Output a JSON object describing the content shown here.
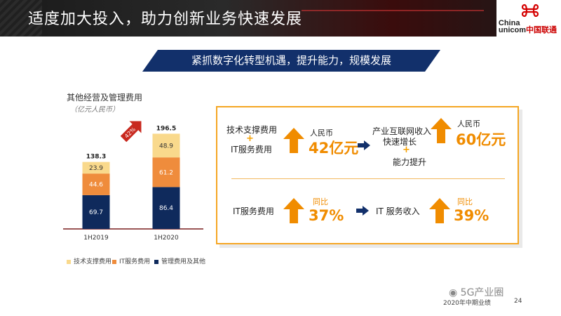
{
  "header": {
    "title": "适度加大投入，助力创新业务快速发展"
  },
  "logo": {
    "line1": "China",
    "line2_en": "unicom",
    "line2_cn": "中国联通"
  },
  "banner": {
    "text": "紧抓数字化转型机遇，提升能力，规模发展"
  },
  "chart": {
    "title": "其他经营及管理费用",
    "unit": "（亿元人民币）",
    "growth_label": "42%"
  },
  "chart_data": {
    "type": "bar",
    "stacked": true,
    "title": "其他经营及管理费用",
    "categories": [
      "1H2019",
      "1H2020"
    ],
    "totals": [
      138.3,
      196.5
    ],
    "series": [
      {
        "name": "管理费用及其他",
        "values": [
          69.7,
          86.4
        ],
        "color": "#0f2a5c"
      },
      {
        "name": "IT服务费用",
        "values": [
          44.6,
          61.2
        ],
        "color": "#ef8c3c"
      },
      {
        "name": "技术支撑费用",
        "values": [
          23.9,
          48.9
        ],
        "color": "#f9d98c"
      }
    ],
    "legend_position": "bottom",
    "grid": false,
    "annotation": "42%"
  },
  "legend": {
    "items": [
      "技术支撑费用",
      "IT服务费用",
      "管理费用及其他"
    ]
  },
  "panel": {
    "row1": {
      "left_top": "技术支撑费用",
      "left_plus": "+",
      "left_bottom": "IT服务费用",
      "currency1": "人民币",
      "value1": "42亿元",
      "middle_line1": "产业互联网收入",
      "middle_line2": "快速增长",
      "middle_plus": "+",
      "middle_bottom": "能力提升",
      "currency2": "人民币",
      "value2": "60亿元"
    },
    "row2": {
      "label1": "IT服务费用",
      "yoy1": "同比",
      "pct1": "37%",
      "label2": "IT 服务收入",
      "yoy2": "同比",
      "pct2": "39%"
    }
  },
  "footer": {
    "watermark": "5G产业圈",
    "text": "2020年中期业绩",
    "page": "24"
  },
  "colors": {
    "accent": "#f08c00",
    "navy": "#0f2a5c",
    "banner": "#12306b",
    "header_bg": "#1a1a1a"
  },
  "icons": [
    "logo-knot-icon",
    "up-arrow-icon",
    "right-arrow-icon",
    "growth-arrow-icon",
    "wechat-icon"
  ]
}
